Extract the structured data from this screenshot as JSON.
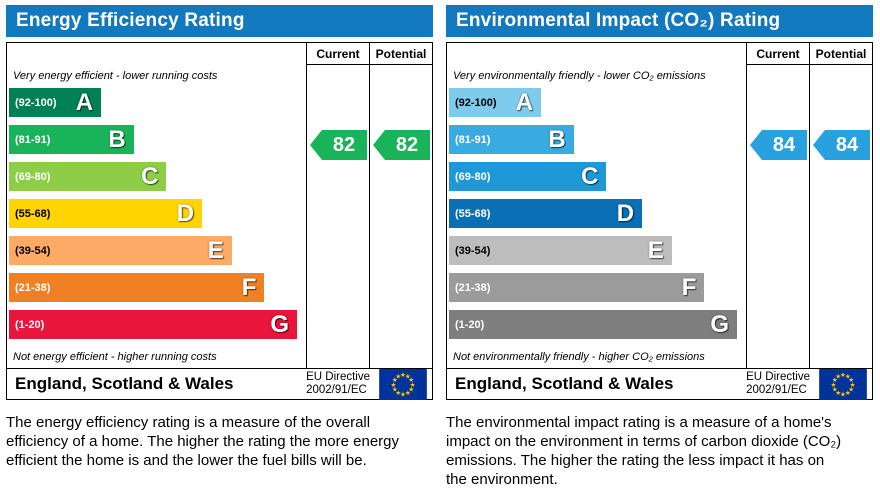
{
  "chart_data": [
    {
      "type": "bar",
      "title": "Energy Efficiency Rating",
      "categories": [
        "A (92-100)",
        "B (81-91)",
        "C (69-80)",
        "D (55-68)",
        "E (39-54)",
        "F (21-38)",
        "G (1-20)"
      ],
      "values": [
        31,
        42,
        53,
        65,
        75,
        86,
        97
      ],
      "current": 82,
      "potential": 82,
      "annotations": [
        "Very energy efficient - lower running costs",
        "Not energy efficient - higher running costs"
      ],
      "legend": [
        "Current",
        "Potential"
      ]
    },
    {
      "type": "bar",
      "title": "Environmental Impact (CO₂) Rating",
      "categories": [
        "A (92-100)",
        "B (81-91)",
        "C (69-80)",
        "D (55-68)",
        "E (39-54)",
        "F (21-38)",
        "G (1-20)"
      ],
      "values": [
        31,
        42,
        53,
        65,
        75,
        86,
        97
      ],
      "current": 84,
      "potential": 84,
      "annotations": [
        "Very environmentally friendly - lower CO₂ emissions",
        "Not environmentally friendly - higher CO₂ emissions"
      ],
      "legend": [
        "Current",
        "Potential"
      ]
    }
  ],
  "eu_flag": {
    "background": "#003399",
    "star_color": "#ffcc00"
  },
  "panels": [
    {
      "title": "Energy Efficiency Rating",
      "header_color": "#1279be",
      "columns": {
        "current": "Current",
        "potential": "Potential"
      },
      "top_note": "Very energy efficient - lower running costs",
      "bottom_note": "Not energy efficient - higher running costs",
      "bands": [
        {
          "range": "(92-100)",
          "letter": "A",
          "color": "#008054",
          "width_pct": 31,
          "text_color": "#ffffff"
        },
        {
          "range": "(81-91)",
          "letter": "B",
          "color": "#19b459",
          "width_pct": 42,
          "text_color": "#ffffff"
        },
        {
          "range": "(69-80)",
          "letter": "C",
          "color": "#8dce46",
          "width_pct": 53,
          "text_color": "#ffffff"
        },
        {
          "range": "(55-68)",
          "letter": "D",
          "color": "#ffd500",
          "width_pct": 65,
          "text_color": "#000000"
        },
        {
          "range": "(39-54)",
          "letter": "E",
          "color": "#fcaa65",
          "width_pct": 75,
          "text_color": "#000000"
        },
        {
          "range": "(21-38)",
          "letter": "F",
          "color": "#ef8023",
          "width_pct": 86,
          "text_color": "#ffffff"
        },
        {
          "range": "(1-20)",
          "letter": "G",
          "color": "#e9153b",
          "width_pct": 97,
          "text_color": "#ffffff"
        }
      ],
      "current": {
        "value": "82",
        "band_index": 1
      },
      "potential": {
        "value": "82",
        "band_index": 1
      },
      "arrow_color": "#19b459",
      "footer": {
        "region": "England, Scotland & Wales",
        "directive_line1": "EU Directive",
        "directive_line2": "2002/91/EC"
      },
      "description": "The energy efficiency rating is a measure of the overall efficiency of a home. The higher the rating the more energy efficient the home is and the lower the fuel bills will be."
    },
    {
      "title": "Environmental Impact (CO₂) Rating",
      "header_color": "#1279be",
      "columns": {
        "current": "Current",
        "potential": "Potential"
      },
      "top_note": "Very environmentally friendly - lower CO₂ emissions",
      "bottom_note": "Not environmentally friendly - higher CO₂ emissions",
      "bands": [
        {
          "range": "(92-100)",
          "letter": "A",
          "color": "#7ecbee",
          "width_pct": 31,
          "text_color": "#000000"
        },
        {
          "range": "(81-91)",
          "letter": "B",
          "color": "#39abe3",
          "width_pct": 42,
          "text_color": "#ffffff"
        },
        {
          "range": "(69-80)",
          "letter": "C",
          "color": "#1f98d8",
          "width_pct": 53,
          "text_color": "#ffffff"
        },
        {
          "range": "(55-68)",
          "letter": "D",
          "color": "#0a6fb4",
          "width_pct": 65,
          "text_color": "#ffffff"
        },
        {
          "range": "(39-54)",
          "letter": "E",
          "color": "#bdbdbd",
          "width_pct": 75,
          "text_color": "#000000"
        },
        {
          "range": "(21-38)",
          "letter": "F",
          "color": "#9b9b9b",
          "width_pct": 86,
          "text_color": "#ffffff"
        },
        {
          "range": "(1-20)",
          "letter": "G",
          "color": "#7e7e7e",
          "width_pct": 97,
          "text_color": "#ffffff"
        }
      ],
      "current": {
        "value": "84",
        "band_index": 1
      },
      "potential": {
        "value": "84",
        "band_index": 1
      },
      "arrow_color": "#28a2de",
      "footer": {
        "region": "England, Scotland & Wales",
        "directive_line1": "EU Directive",
        "directive_line2": "2002/91/EC"
      },
      "description": "The environmental impact rating is a measure of a home's impact on the environment in terms of carbon dioxide (CO₂) emissions. The higher the rating the less impact it has on the environment."
    }
  ]
}
